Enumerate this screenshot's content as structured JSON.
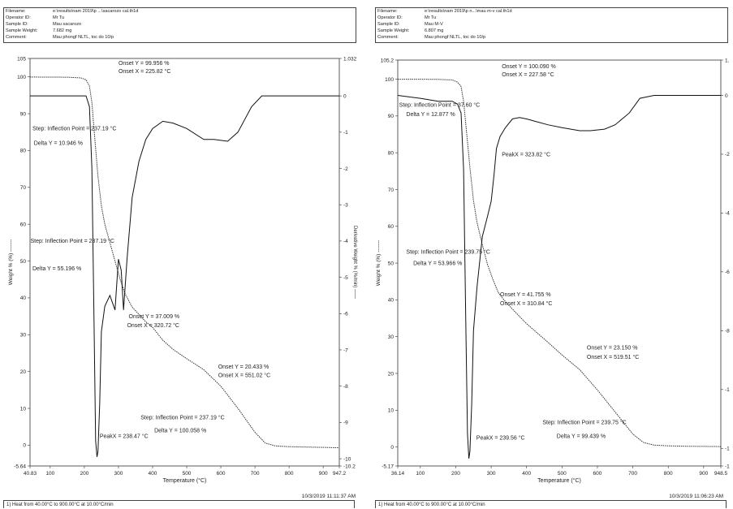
{
  "panels": [
    {
      "header": {
        "filename_label": "Filename:",
        "filename": "e:\\results\\nam 2019\\p ...\\sacarozo cal.th1d",
        "operator_label": "Operator ID:",
        "operator": "Mr Tu",
        "sample_label": "Sample ID:",
        "sample": "Mau sacarozo",
        "weight_label": "Sample Weight:",
        "weight": "7.682 mg",
        "comment_label": "Comment:",
        "comment": "Mau phongf NLTL, toc do 10/p"
      },
      "timestamp": "10/3/2019 11:11:37 AM",
      "footer": "1)  Heat from 40.00°C to 900.00°C at 10.00°C/min"
    },
    {
      "header": {
        "filename_label": "Filename:",
        "filename": "e:\\results\\nam 2019\\p n...\\mau m-v cal.th1d",
        "operator_label": "Operator ID:",
        "operator": "Mr Tu",
        "sample_label": "Sample ID:",
        "sample": "Mau M-V",
        "weight_label": "Sample Weight:",
        "weight": "6.807 mg",
        "comment_label": "Comment:",
        "comment": "Mau phongf NLTL, toc do 10/p"
      },
      "timestamp": "10/3/2019 11:06:23 AM",
      "footer": "1)  Heat from 40.00°C to 900.00°C at 10.00°C/min"
    }
  ],
  "chart_data": [
    {
      "type": "line",
      "title": "",
      "xlabel": "Temperature (°C)",
      "ylabel": "Weight % (%) -------",
      "y2label": "Derivative Weight % (%/min) ——",
      "xlim": [
        40.83,
        947.2
      ],
      "ylim": [
        -5.64,
        105
      ],
      "y2lim": [
        -10.2,
        1.032
      ],
      "x_ticks": [
        {
          "v": 40.83,
          "t": "40.83"
        },
        {
          "v": 100,
          "t": "100"
        },
        {
          "v": 200,
          "t": "200"
        },
        {
          "v": 300,
          "t": "300"
        },
        {
          "v": 400,
          "t": "400"
        },
        {
          "v": 500,
          "t": "500"
        },
        {
          "v": 600,
          "t": "600"
        },
        {
          "v": 700,
          "t": "700"
        },
        {
          "v": 800,
          "t": "800"
        },
        {
          "v": 900,
          "t": "900"
        },
        {
          "v": 947.2,
          "t": "947.2"
        }
      ],
      "y_ticks": [
        {
          "v": 105,
          "t": "105"
        },
        {
          "v": 100,
          "t": "100"
        },
        {
          "v": 90,
          "t": "90"
        },
        {
          "v": 80,
          "t": "80"
        },
        {
          "v": 70,
          "t": "70"
        },
        {
          "v": 60,
          "t": "60"
        },
        {
          "v": 50,
          "t": "50"
        },
        {
          "v": 40,
          "t": "40"
        },
        {
          "v": 30,
          "t": "30"
        },
        {
          "v": 20,
          "t": "20"
        },
        {
          "v": 10,
          "t": "10"
        },
        {
          "v": 0,
          "t": "0"
        },
        {
          "v": -5.64,
          "t": "-5.64"
        }
      ],
      "y2_ticks": [
        {
          "v": 1.032,
          "t": "1.032"
        },
        {
          "v": 0,
          "t": "0"
        },
        {
          "v": -1,
          "t": "-1"
        },
        {
          "v": -2,
          "t": "-2"
        },
        {
          "v": -3,
          "t": "-3"
        },
        {
          "v": -4,
          "t": "-4"
        },
        {
          "v": -5,
          "t": "-5"
        },
        {
          "v": -6,
          "t": "-6"
        },
        {
          "v": -7,
          "t": "-7"
        },
        {
          "v": -8,
          "t": "-8"
        },
        {
          "v": -9,
          "t": "-9"
        },
        {
          "v": -10,
          "t": "-10"
        },
        {
          "v": -10.2,
          "t": "-10.2"
        }
      ],
      "weight_series": {
        "x": [
          40.83,
          100,
          150,
          190,
          205,
          215,
          222,
          230,
          240,
          250,
          260,
          275,
          290,
          305,
          320,
          340,
          360,
          380,
          400,
          430,
          460,
          500,
          550,
          600,
          650,
          700,
          730,
          760,
          800,
          850,
          900,
          947.2
        ],
        "y": [
          99.95,
          99.93,
          99.9,
          99.7,
          99.2,
          97.5,
          93,
          84,
          73,
          65,
          60,
          55,
          50,
          45,
          41,
          37.5,
          35.5,
          33.5,
          32,
          28.5,
          26,
          23.5,
          20.5,
          16,
          10,
          3.5,
          0.6,
          -0.2,
          -0.4,
          -0.5,
          -0.6,
          -0.7
        ]
      },
      "derivative_series": {
        "x": [
          40.83,
          100,
          150,
          190,
          205,
          215,
          222,
          228,
          233,
          237,
          240,
          245,
          250,
          260,
          275,
          290,
          300,
          308,
          315,
          325,
          340,
          360,
          380,
          400,
          430,
          460,
          500,
          550,
          580,
          620,
          650,
          690,
          720,
          760,
          800,
          850,
          900,
          947.2
        ],
        "y": [
          0,
          0,
          0,
          0,
          0,
          -0.3,
          -2,
          -6,
          -9.5,
          -9.95,
          -9.8,
          -8.5,
          -6.5,
          -5.8,
          -5.5,
          -5.9,
          -4.5,
          -4.8,
          -5.9,
          -4.5,
          -2.8,
          -1.8,
          -1.2,
          -0.9,
          -0.7,
          -0.75,
          -0.9,
          -1.2,
          -1.2,
          -1.25,
          -1,
          -0.3,
          0,
          0,
          0,
          0,
          0,
          0
        ]
      },
      "annotations": [
        {
          "text": "Onset Y = 99.956 %",
          "x": 300,
          "y": 103.2
        },
        {
          "text": "Onset X = 225.82 °C",
          "x": 300,
          "y": 101
        },
        {
          "text": "Step: Inflection Point = 237.19 °C",
          "x": 48,
          "y": 85.5
        },
        {
          "text": "Delta Y = 10.946 %",
          "x": 52,
          "y": 81.5
        },
        {
          "text": "Step: Inflection Point = 237.19 °C",
          "x": 42,
          "y": 55
        },
        {
          "text": "Delta Y = 55.196 %",
          "x": 48,
          "y": 47.5
        },
        {
          "text": "Onset Y = 37.009 %",
          "x": 330,
          "y": 34.5
        },
        {
          "text": "Onset X = 320.72 °C",
          "x": 325,
          "y": 32
        },
        {
          "text": "Onset Y = 20.433 %",
          "x": 592,
          "y": 20.8
        },
        {
          "text": "Onset X = 551.02 °C",
          "x": 592,
          "y": 18.5
        },
        {
          "text": "Step: Inflection Point = 237.19 °C",
          "x": 365,
          "y": 7
        },
        {
          "text": "Delta Y = 100.058 %",
          "x": 405,
          "y": 3.5
        },
        {
          "text": "PeakX = 238.47 °C",
          "x": 245,
          "y": 2
        }
      ]
    },
    {
      "type": "line",
      "title": "",
      "xlabel": "Temperature (°C)",
      "ylabel": "Weight % (%) -------",
      "y2label": "",
      "xlim": [
        36.14,
        948.5
      ],
      "ylim": [
        -5.17,
        105.2
      ],
      "y2lim": [
        -12.6,
        1.2
      ],
      "x_ticks": [
        {
          "v": 36.14,
          "t": "36.14"
        },
        {
          "v": 100,
          "t": "100"
        },
        {
          "v": 200,
          "t": "200"
        },
        {
          "v": 300,
          "t": "300"
        },
        {
          "v": 400,
          "t": "400"
        },
        {
          "v": 500,
          "t": "500"
        },
        {
          "v": 600,
          "t": "600"
        },
        {
          "v": 700,
          "t": "700"
        },
        {
          "v": 800,
          "t": "800"
        },
        {
          "v": 900,
          "t": "900"
        },
        {
          "v": 948.5,
          "t": "948.5"
        }
      ],
      "y_ticks": [
        {
          "v": 105.2,
          "t": "105.2"
        },
        {
          "v": 100,
          "t": "100"
        },
        {
          "v": 90,
          "t": "90"
        },
        {
          "v": 80,
          "t": "80"
        },
        {
          "v": 70,
          "t": "70"
        },
        {
          "v": 60,
          "t": "60"
        },
        {
          "v": 50,
          "t": "50"
        },
        {
          "v": 40,
          "t": "40"
        },
        {
          "v": 30,
          "t": "30"
        },
        {
          "v": 20,
          "t": "20"
        },
        {
          "v": 10,
          "t": "10"
        },
        {
          "v": 0,
          "t": "0"
        },
        {
          "v": -5.17,
          "t": "-5.17"
        }
      ],
      "y2_ticks": [
        {
          "v": 1.2,
          "t": "1."
        },
        {
          "v": 0,
          "t": "0"
        },
        {
          "v": -2,
          "t": "-2"
        },
        {
          "v": -4,
          "t": "-4"
        },
        {
          "v": -6,
          "t": "-6"
        },
        {
          "v": -8,
          "t": "-8"
        },
        {
          "v": -10,
          "t": "-1"
        },
        {
          "v": -12,
          "t": "-1"
        },
        {
          "v": -12.6,
          "t": "-1"
        }
      ],
      "weight_series": {
        "x": [
          36.14,
          100,
          150,
          190,
          205,
          215,
          222,
          230,
          240,
          250,
          260,
          275,
          290,
          305,
          320,
          340,
          360,
          380,
          400,
          430,
          460,
          500,
          550,
          600,
          650,
          700,
          730,
          760,
          800,
          850,
          900,
          948.5
        ],
        "y": [
          100,
          99.98,
          99.95,
          99.8,
          99.2,
          98,
          94,
          86,
          76,
          67,
          61,
          55,
          49.5,
          45.5,
          42,
          39.5,
          37.5,
          35.5,
          33.5,
          31,
          28.5,
          25,
          21,
          15.5,
          9.5,
          3.5,
          1.2,
          0.5,
          0.3,
          0.2,
          0.15,
          0.1
        ]
      },
      "derivative_series": {
        "x": [
          36.14,
          100,
          150,
          190,
          205,
          215,
          222,
          228,
          233,
          237,
          240,
          245,
          250,
          260,
          275,
          290,
          300,
          308,
          315,
          325,
          340,
          360,
          380,
          400,
          430,
          460,
          500,
          550,
          580,
          620,
          650,
          690,
          720,
          760,
          800,
          850,
          900,
          948.5
        ],
        "y": [
          0,
          -0.1,
          -0.2,
          -0.2,
          -0.3,
          -0.6,
          -2.5,
          -7.5,
          -11.5,
          -12.35,
          -12.1,
          -10.5,
          -8,
          -6.5,
          -4.8,
          -4.1,
          -3.6,
          -2.7,
          -1.8,
          -1.4,
          -1.1,
          -0.8,
          -0.75,
          -0.8,
          -0.9,
          -1,
          -1.1,
          -1.2,
          -1.2,
          -1.15,
          -1,
          -0.6,
          -0.1,
          0,
          0,
          0,
          0,
          0
        ]
      },
      "annotations": [
        {
          "text": "Onset Y = 100.090 %",
          "x": 330,
          "y": 103
        },
        {
          "text": "Onset X = 227.58 °C",
          "x": 330,
          "y": 100.8
        },
        {
          "text": "Step: Inflection Point = 37.60 °C",
          "x": 40,
          "y": 92.5
        },
        {
          "text": "Delta Y = 12.877 %",
          "x": 60,
          "y": 90
        },
        {
          "text": "PeakX = 323.82 °C",
          "x": 330,
          "y": 79
        },
        {
          "text": "Step: Inflection Point = 239.75 °C",
          "x": 60,
          "y": 52.5
        },
        {
          "text": "Delta Y = 53.966 %",
          "x": 80,
          "y": 49.5
        },
        {
          "text": "Onset Y = 41.755 %",
          "x": 325,
          "y": 41
        },
        {
          "text": "Onset X = 310.84 °C",
          "x": 325,
          "y": 38.5
        },
        {
          "text": "Onset Y = 23.150 %",
          "x": 570,
          "y": 26.5
        },
        {
          "text": "Onset X = 519.51 °C",
          "x": 570,
          "y": 24
        },
        {
          "text": "Step: Inflection Point = 239.75 °C",
          "x": 445,
          "y": 6.2
        },
        {
          "text": "Delta Y = 99.439 %",
          "x": 485,
          "y": 2.5
        },
        {
          "text": "PeakX = 239.56 °C",
          "x": 258,
          "y": 2
        }
      ]
    }
  ]
}
